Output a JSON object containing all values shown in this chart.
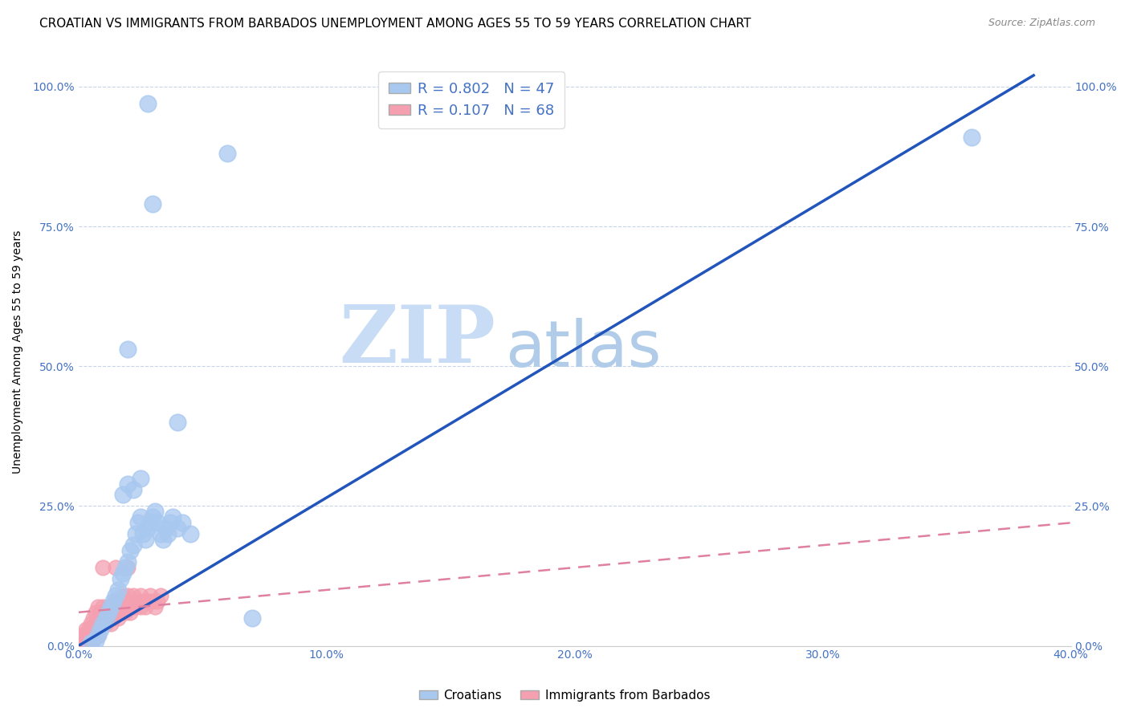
{
  "title": "CROATIAN VS IMMIGRANTS FROM BARBADOS UNEMPLOYMENT AMONG AGES 55 TO 59 YEARS CORRELATION CHART",
  "source": "Source: ZipAtlas.com",
  "ylabel": "Unemployment Among Ages 55 to 59 years",
  "xlim": [
    0.0,
    0.4
  ],
  "ylim": [
    0.0,
    1.05
  ],
  "x_ticks": [
    0.0,
    0.1,
    0.2,
    0.3,
    0.4
  ],
  "x_tick_labels": [
    "0.0%",
    "10.0%",
    "20.0%",
    "30.0%",
    "40.0%"
  ],
  "y_ticks": [
    0.0,
    0.25,
    0.5,
    0.75,
    1.0
  ],
  "y_tick_labels": [
    "0.0%",
    "25.0%",
    "50.0%",
    "75.0%",
    "100.0%"
  ],
  "croatian_R": 0.802,
  "croatian_N": 47,
  "barbados_R": 0.107,
  "barbados_N": 68,
  "croatian_color": "#a8c8f0",
  "barbados_color": "#f4a0b0",
  "line_color_croatian": "#2255bb",
  "line_color_barbados": "#e080a0",
  "watermark_zip": "ZIP",
  "watermark_atlas": "atlas",
  "background_color": "#ffffff",
  "grid_color": "#c8d4e8",
  "title_fontsize": 11,
  "axis_label_fontsize": 10,
  "tick_fontsize": 10,
  "croatian_scatter": [
    [
      0.005,
      0.005
    ],
    [
      0.007,
      0.01
    ],
    [
      0.008,
      0.02
    ],
    [
      0.009,
      0.03
    ],
    [
      0.01,
      0.04
    ],
    [
      0.011,
      0.05
    ],
    [
      0.012,
      0.06
    ],
    [
      0.013,
      0.07
    ],
    [
      0.014,
      0.08
    ],
    [
      0.015,
      0.09
    ],
    [
      0.016,
      0.1
    ],
    [
      0.017,
      0.12
    ],
    [
      0.018,
      0.13
    ],
    [
      0.019,
      0.14
    ],
    [
      0.02,
      0.15
    ],
    [
      0.021,
      0.17
    ],
    [
      0.022,
      0.18
    ],
    [
      0.023,
      0.2
    ],
    [
      0.024,
      0.22
    ],
    [
      0.025,
      0.23
    ],
    [
      0.026,
      0.2
    ],
    [
      0.027,
      0.19
    ],
    [
      0.028,
      0.21
    ],
    [
      0.029,
      0.22
    ],
    [
      0.03,
      0.23
    ],
    [
      0.031,
      0.24
    ],
    [
      0.032,
      0.22
    ],
    [
      0.033,
      0.2
    ],
    [
      0.034,
      0.19
    ],
    [
      0.035,
      0.21
    ],
    [
      0.036,
      0.2
    ],
    [
      0.037,
      0.22
    ],
    [
      0.038,
      0.23
    ],
    [
      0.04,
      0.21
    ],
    [
      0.042,
      0.22
    ],
    [
      0.045,
      0.2
    ],
    [
      0.018,
      0.27
    ],
    [
      0.02,
      0.29
    ],
    [
      0.022,
      0.28
    ],
    [
      0.025,
      0.3
    ],
    [
      0.04,
      0.4
    ],
    [
      0.02,
      0.53
    ],
    [
      0.03,
      0.79
    ],
    [
      0.028,
      0.97
    ],
    [
      0.06,
      0.88
    ],
    [
      0.36,
      0.91
    ],
    [
      0.07,
      0.05
    ]
  ],
  "barbados_scatter": [
    [
      0.001,
      0.005
    ],
    [
      0.002,
      0.01
    ],
    [
      0.003,
      0.02
    ],
    [
      0.004,
      0.02
    ],
    [
      0.005,
      0.03
    ],
    [
      0.005,
      0.04
    ],
    [
      0.006,
      0.03
    ],
    [
      0.006,
      0.05
    ],
    [
      0.007,
      0.04
    ],
    [
      0.007,
      0.06
    ],
    [
      0.008,
      0.05
    ],
    [
      0.008,
      0.07
    ],
    [
      0.009,
      0.04
    ],
    [
      0.009,
      0.06
    ],
    [
      0.01,
      0.05
    ],
    [
      0.01,
      0.07
    ],
    [
      0.011,
      0.04
    ],
    [
      0.011,
      0.06
    ],
    [
      0.012,
      0.05
    ],
    [
      0.012,
      0.07
    ],
    [
      0.013,
      0.04
    ],
    [
      0.013,
      0.06
    ],
    [
      0.014,
      0.05
    ],
    [
      0.014,
      0.07
    ],
    [
      0.015,
      0.06
    ],
    [
      0.015,
      0.08
    ],
    [
      0.016,
      0.05
    ],
    [
      0.016,
      0.07
    ],
    [
      0.017,
      0.06
    ],
    [
      0.017,
      0.08
    ],
    [
      0.018,
      0.07
    ],
    [
      0.018,
      0.09
    ],
    [
      0.019,
      0.06
    ],
    [
      0.019,
      0.08
    ],
    [
      0.02,
      0.07
    ],
    [
      0.02,
      0.09
    ],
    [
      0.021,
      0.06
    ],
    [
      0.021,
      0.08
    ],
    [
      0.022,
      0.07
    ],
    [
      0.022,
      0.09
    ],
    [
      0.001,
      0.01
    ],
    [
      0.002,
      0.02
    ],
    [
      0.003,
      0.03
    ],
    [
      0.004,
      0.03
    ],
    [
      0.023,
      0.07
    ],
    [
      0.024,
      0.08
    ],
    [
      0.025,
      0.07
    ],
    [
      0.025,
      0.09
    ],
    [
      0.026,
      0.08
    ],
    [
      0.027,
      0.07
    ],
    [
      0.028,
      0.08
    ],
    [
      0.029,
      0.09
    ],
    [
      0.03,
      0.08
    ],
    [
      0.031,
      0.07
    ],
    [
      0.032,
      0.08
    ],
    [
      0.033,
      0.09
    ],
    [
      0.01,
      0.14
    ],
    [
      0.015,
      0.14
    ],
    [
      0.02,
      0.14
    ],
    [
      0.0,
      0.0
    ],
    [
      0.001,
      0.0
    ],
    [
      0.002,
      0.01
    ],
    [
      0.003,
      0.01
    ],
    [
      0.004,
      0.01
    ],
    [
      0.005,
      0.01
    ],
    [
      0.006,
      0.01
    ],
    [
      0.007,
      0.02
    ],
    [
      0.008,
      0.02
    ]
  ],
  "croatian_trend_x": [
    0.0,
    0.385
  ],
  "croatian_trend_y": [
    0.0,
    1.02
  ],
  "barbados_trend_x": [
    0.0,
    0.4
  ],
  "barbados_trend_y": [
    0.06,
    0.22
  ]
}
